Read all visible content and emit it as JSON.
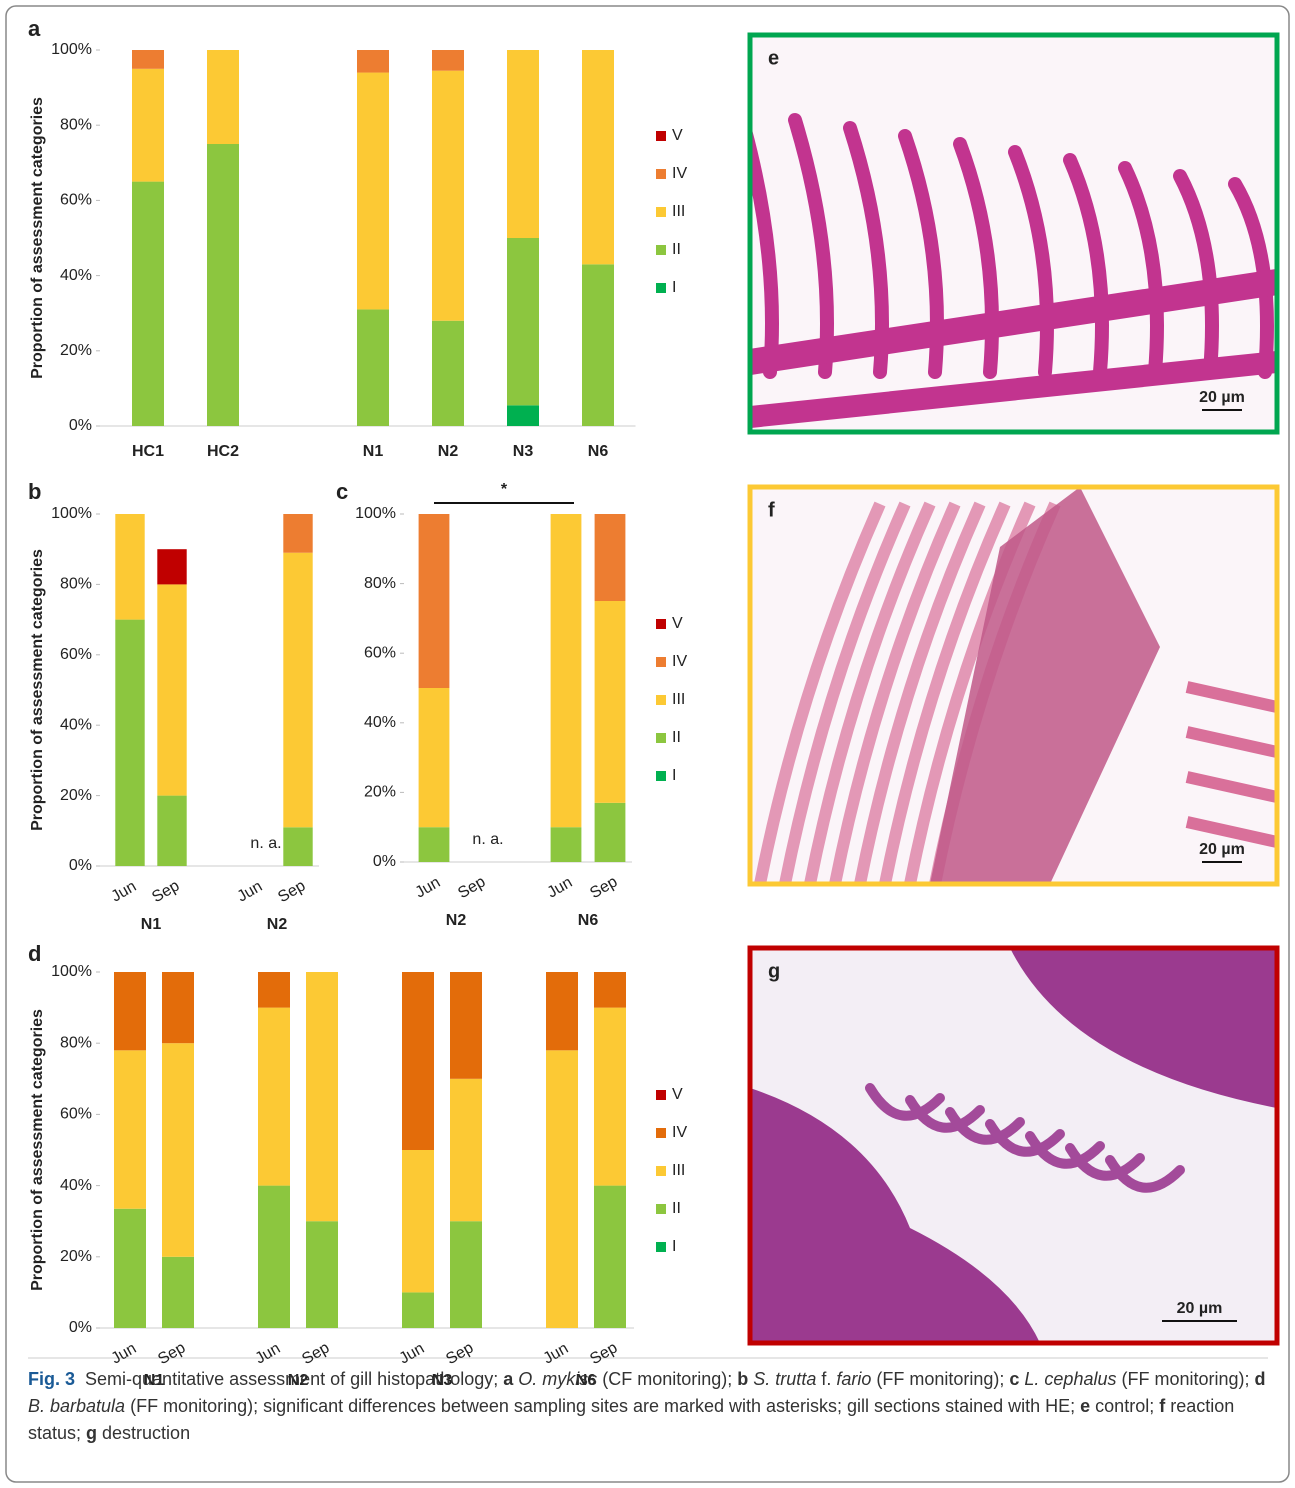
{
  "chart_data": [
    {
      "type": "bar",
      "stacked": true,
      "panel": "a",
      "y_label": "Proportion of assessment categories",
      "categories": [
        "HC1",
        "HC2",
        null,
        "N1",
        "N2",
        "N3",
        "N6"
      ],
      "ylim": [
        0,
        100
      ],
      "yticks": [
        {
          "value": 0,
          "label": "0%"
        },
        {
          "value": 20,
          "label": "20%"
        },
        {
          "value": 40,
          "label": "40%"
        },
        {
          "value": 60,
          "label": "60%"
        },
        {
          "value": 80,
          "label": "80%"
        },
        {
          "value": 100,
          "label": "100%"
        }
      ],
      "series": [
        {
          "name": "I",
          "color": "#00b050",
          "values": [
            0,
            0,
            null,
            0,
            0,
            5.5,
            0
          ]
        },
        {
          "name": "II",
          "color": "#8cc63f",
          "values": [
            65,
            75,
            null,
            31,
            28,
            44.5,
            43
          ]
        },
        {
          "name": "III",
          "color": "#fcc934",
          "values": [
            30,
            25,
            null,
            63,
            66.5,
            50,
            57
          ]
        },
        {
          "name": "IV",
          "color": "#ed7d31",
          "values": [
            5,
            0,
            null,
            6,
            5.5,
            0,
            0
          ]
        },
        {
          "name": "V",
          "color": "#c00000",
          "values": [
            0,
            0,
            null,
            0,
            0,
            0,
            0
          ]
        }
      ]
    },
    {
      "type": "bar",
      "stacked": true,
      "panel": "b",
      "y_label": "Proportion of assessment categories",
      "categories": [
        "Jun",
        "Sep",
        null,
        "Jun",
        "Sep"
      ],
      "groups": [
        "N1",
        "N2"
      ],
      "na_label": "n. a.",
      "ylim": [
        0,
        100
      ],
      "yticks": [
        {
          "value": 0,
          "label": "0%"
        },
        {
          "value": 20,
          "label": "20%"
        },
        {
          "value": 40,
          "label": "40%"
        },
        {
          "value": 60,
          "label": "60%"
        },
        {
          "value": 80,
          "label": "80%"
        },
        {
          "value": 100,
          "label": "100%"
        }
      ],
      "series": [
        {
          "name": "I",
          "color": "#00b050",
          "values": [
            0,
            0,
            null,
            null,
            0
          ]
        },
        {
          "name": "II",
          "color": "#8cc63f",
          "values": [
            70,
            20,
            null,
            null,
            11
          ]
        },
        {
          "name": "III",
          "color": "#fcc934",
          "values": [
            30,
            60,
            null,
            null,
            78
          ]
        },
        {
          "name": "IV",
          "color": "#ed7d31",
          "values": [
            0,
            0,
            null,
            null,
            11
          ]
        },
        {
          "name": "V",
          "color": "#c00000",
          "values": [
            0,
            10,
            null,
            null,
            0
          ]
        }
      ]
    },
    {
      "type": "bar",
      "stacked": true,
      "panel": "c",
      "categories": [
        "Jun",
        "Sep",
        null,
        "Jun",
        "Sep"
      ],
      "groups": [
        "N2",
        "N6"
      ],
      "na_label": "n. a.",
      "significance_label": "*",
      "ylim": [
        0,
        100
      ],
      "yticks": [
        {
          "value": 0,
          "label": "0%"
        },
        {
          "value": 20,
          "label": "20%"
        },
        {
          "value": 40,
          "label": "40%"
        },
        {
          "value": 60,
          "label": "60%"
        },
        {
          "value": 80,
          "label": "80%"
        },
        {
          "value": 100,
          "label": "100%"
        }
      ],
      "series": [
        {
          "name": "I",
          "color": "#00b050",
          "values": [
            0,
            null,
            null,
            0,
            0
          ]
        },
        {
          "name": "II",
          "color": "#8cc63f",
          "values": [
            10,
            null,
            null,
            10,
            17
          ]
        },
        {
          "name": "III",
          "color": "#fcc934",
          "values": [
            40,
            null,
            null,
            90,
            58
          ]
        },
        {
          "name": "IV",
          "color": "#ed7d31",
          "values": [
            50,
            null,
            null,
            0,
            25
          ]
        },
        {
          "name": "V",
          "color": "#c00000",
          "values": [
            0,
            null,
            null,
            0,
            0
          ]
        }
      ]
    },
    {
      "type": "bar",
      "stacked": true,
      "panel": "d",
      "y_label": "Proportion of assessment categories",
      "categories": [
        "Jun",
        "Sep",
        null,
        "Jun",
        "Sep",
        null,
        "Jun",
        "Sep",
        null,
        "Jun",
        "Sep"
      ],
      "groups": [
        "N1",
        "N2",
        "N3",
        "N6"
      ],
      "ylim": [
        0,
        100
      ],
      "yticks": [
        {
          "value": 0,
          "label": "0%"
        },
        {
          "value": 20,
          "label": "20%"
        },
        {
          "value": 40,
          "label": "40%"
        },
        {
          "value": 60,
          "label": "60%"
        },
        {
          "value": 80,
          "label": "80%"
        },
        {
          "value": 100,
          "label": "100%"
        }
      ],
      "series": [
        {
          "name": "I",
          "color": "#00b050",
          "values": [
            0,
            0,
            null,
            0,
            0,
            null,
            0,
            0,
            null,
            0,
            0
          ]
        },
        {
          "name": "II",
          "color": "#8cc63f",
          "values": [
            33.5,
            20,
            null,
            40,
            30,
            null,
            10,
            30,
            null,
            0,
            40
          ]
        },
        {
          "name": "III",
          "color": "#fcc934",
          "values": [
            44.5,
            60,
            null,
            50,
            70,
            null,
            40,
            40,
            null,
            78,
            50
          ]
        },
        {
          "name": "IV",
          "color": "#e36c0a",
          "values": [
            22,
            20,
            null,
            10,
            0,
            null,
            50,
            30,
            null,
            22,
            10
          ]
        },
        {
          "name": "V",
          "color": "#c00000",
          "values": [
            0,
            0,
            null,
            0,
            0,
            null,
            0,
            0,
            null,
            0,
            0
          ]
        }
      ]
    }
  ],
  "images": [
    {
      "label": "e",
      "scale": "20 µm",
      "border": "#00a650"
    },
    {
      "label": "f",
      "scale": "20 µm",
      "border": "#fcc934"
    },
    {
      "label": "g",
      "scale": "20 µm",
      "border": "#c00000"
    }
  ],
  "caption": [
    {
      "text": "Fig. 3",
      "style": "bold"
    },
    {
      "text": "  Semi-quantitative assessment of gill histopathology; ",
      "style": "normal"
    },
    {
      "text": "a",
      "style": "bold"
    },
    {
      "text": " O. mykiss",
      "style": "italic"
    },
    {
      "text": " (CF monitoring); ",
      "style": "normal"
    },
    {
      "text": "b",
      "style": "bold"
    },
    {
      "text": " S. trutta",
      "style": "italic"
    },
    {
      "text": " f. ",
      "style": "normal"
    },
    {
      "text": "fario",
      "style": "italic"
    },
    {
      "text": " (FF monitoring); ",
      "style": "normal"
    },
    {
      "text": "c",
      "style": "bold"
    },
    {
      "text": " L. cephalus",
      "style": "italic"
    },
    {
      "text": " (FF monitoring); ",
      "style": "normal"
    },
    {
      "text": "d",
      "style": "bold"
    },
    {
      "text": " B. barbatula",
      "style": "italic"
    },
    {
      "text": " (FF monitoring); significant differences between sampling sites are marked with asterisks; gill sections stained with HE; ",
      "style": "normal"
    },
    {
      "text": "e",
      "style": "bold"
    },
    {
      "text": " control; ",
      "style": "normal"
    },
    {
      "text": "f",
      "style": "bold"
    },
    {
      "text": " reaction status; ",
      "style": "normal"
    },
    {
      "text": "g",
      "style": "bold"
    },
    {
      "text": " destruction",
      "style": "normal"
    }
  ]
}
